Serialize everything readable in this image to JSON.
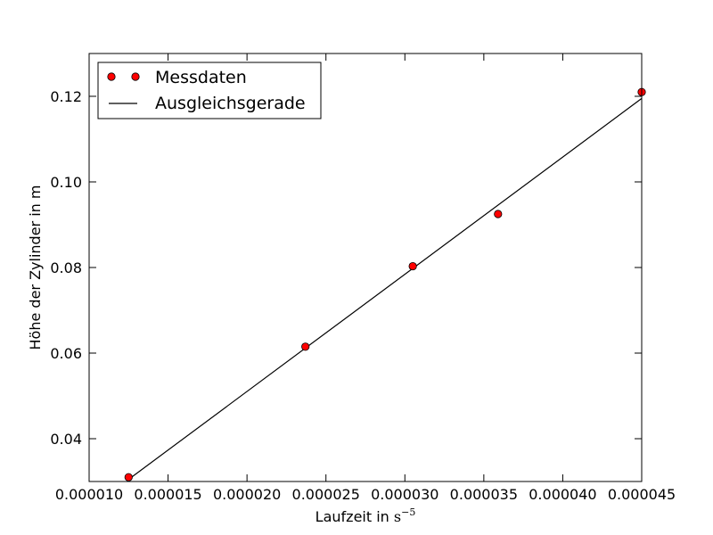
{
  "chart_data": {
    "type": "scatter",
    "xlabel": "Laufzeit in ",
    "xlabel_unit": "s",
    "xlabel_exp": "−5",
    "ylabel": "Höhe der Zylinder in m",
    "xlim": [
      1e-05,
      4.5e-05
    ],
    "ylim": [
      0.03,
      0.13
    ],
    "xticks": [
      1e-05,
      1.5e-05,
      2e-05,
      2.5e-05,
      3e-05,
      3.5e-05,
      4e-05,
      4.5e-05
    ],
    "xtick_labels": [
      "0.000010",
      "0.000015",
      "0.000020",
      "0.000025",
      "0.000030",
      "0.000035",
      "0.000040",
      "0.000045"
    ],
    "yticks": [
      0.04,
      0.06,
      0.08,
      0.1,
      0.12
    ],
    "ytick_labels": [
      "0.04",
      "0.06",
      "0.08",
      "0.10",
      "0.12"
    ],
    "grid": false,
    "legend_position": "top-left",
    "series": [
      {
        "name": "Messdaten",
        "kind": "markers",
        "color": "#ff0000",
        "x": [
          1.25e-05,
          2.37e-05,
          3.05e-05,
          3.59e-05,
          4.5e-05
        ],
        "y": [
          0.031,
          0.0615,
          0.0803,
          0.0925,
          0.121
        ]
      },
      {
        "name": "Ausgleichsgerade",
        "kind": "line",
        "color": "#000000",
        "x": [
          1.25e-05,
          4.5e-05
        ],
        "y": [
          0.0305,
          0.1195
        ]
      }
    ]
  }
}
